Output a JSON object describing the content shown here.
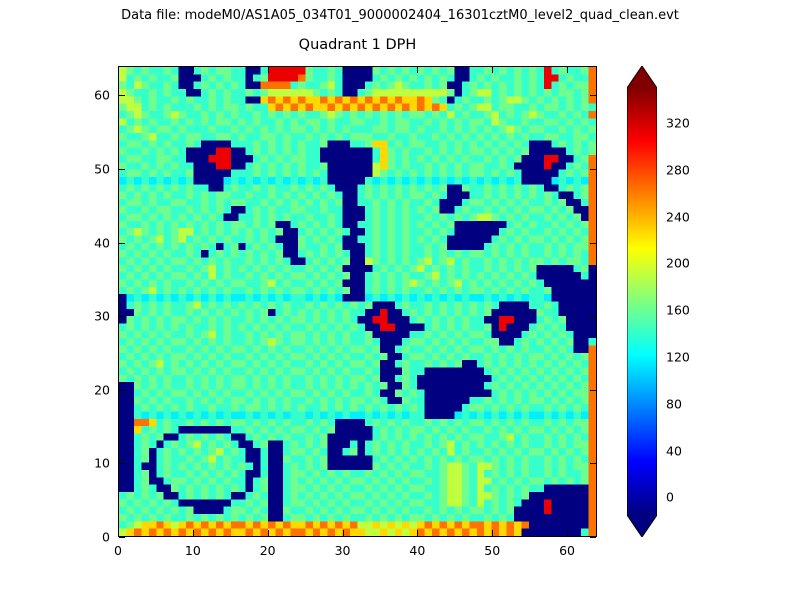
{
  "figure": {
    "suptitle": "Data file: modeM0/AS1A05_034T01_9000002404_16301cztM0_level2_quad_clean.evt",
    "title": "Quadrant 1 DPH",
    "background": "#ffffff"
  },
  "chart_data": {
    "type": "heatmap",
    "title": "Quadrant 1 DPH",
    "suptitle": "Data file: modeM0/AS1A05_034T01_9000002404_16301cztM0_level2_quad_clean.evt",
    "colormap": "jet",
    "vmin": 0,
    "vmax": 347,
    "x_range": [
      0,
      64
    ],
    "y_range": [
      0,
      64
    ],
    "xlabel": "",
    "ylabel": "",
    "x_ticks": [
      0,
      10,
      20,
      30,
      40,
      50,
      60
    ],
    "y_ticks": [
      0,
      10,
      20,
      30,
      40,
      50,
      60
    ],
    "colorbar": {
      "ticks": [
        0,
        40,
        80,
        120,
        160,
        200,
        240,
        280,
        320
      ],
      "extend": "both",
      "tick_vmin": -15,
      "tick_vmax": 350
    },
    "grid_encoding": {
      "0": 0,
      "1": 40,
      "2": 80,
      "3": 125,
      "4": 148,
      "5": 168,
      "6": 195,
      "7": 230,
      "8": 265,
      "9": 310
    },
    "row_order": "top_to_bottom (first row is y=63, last row is y=0)",
    "rows": [
      "6545445400454554400499999544540000545454545450044545454549454458",
      "6454544500045454404599998544540000454545454540045454454549945448",
      "5465445400454545400888845445640004545654454500454545454549454558",
      "6544545440045454454566666654540045666666666650456645454545455458",
      "6654544545445454400787878778787878787877875404544545665454545458",
      "5664545444545455454478787877878787878787878745456645544545545454",
      "4565445654454545445454545445654545454545545464544564545654454548",
      "6454544545454554545445454554544554454554454545455465445445545454",
      "4565455454445445454545455454545444554554544545454545654554454545",
      "5445644545544554544554544545454555445445445454545454545445544554",
      "4554545445400004445454545445000445774545544545454545454000454545",
      "5445454540000990045454545440000000475454454545455454545000004545",
      "4554455440009990004545455440000000475454545454544545450009900458",
      "5445454544000990045454545445000000675454454545455445400009004548",
      "4554545445000004445454545454000000654545454545455454540000045458",
      "3434343434000034343434343434000004343434343434343434340000343438",
      "4545454545440045445454454545400045454545454500544545454540045458",
      "5454545445454554454454545454540045454545545400044545454545400458",
      "4554544554454545544545454545450044545454454000455454545445450048",
      "5445455445454540045454455445440004545454545004544545454554545008",
      "4554545454545400445454544544540004545454454545456654545445454508",
      "5445454545454545545450045454540044545454545450000000454544545458",
      "4565454566454545454545004545454004545454454540000004545445454548",
      "5454564564545454454540005454540044545454545400000045454554545458",
      "4545454545454045045454005445450004545454454500000454545445454558",
      "5454545445404545454545004545454004545454454545455454545445454548",
      "4545454554545454454545400454545006545454564564544545454554545548",
      "5454545445456454545454544545450000454545645454544545454500000450",
      "4545454554546454454545455454545004545454456454545454545400000040",
      "5454545445454545544564544545450004545456545456454545454540000000",
      "4545645454545454454545455454545004545454454545455454545445000000",
      "0343434343434343343434344343430003434343434343433434343443000000",
      "0454545445645454545454544545454545000454454545454540000445400000",
      "0054545445454545454504545454545440090045454545454500000054400000",
      "0545454554545454454545455454545400990004545454544009900045450000",
      "4545454545445454545454544545454540099000045454544509000454540000",
      "5454545445456454454545455454545445000004454545455400004545454000",
      "4545454554545454454565455454545445400045545454544550045454545004",
      "5454545445454545545454544545454554500454454545455454545445454008",
      "4545454554545454454545455454545445450045545454544545454554545458",
      "5454564545454545545454544545454554500454454545004545454545454548",
      "4545454554545454454545455454545445400054400000000454545454545458",
      "5454545445454545545454544545454554500454000000000045454545454548",
      "0054545445454545545454544545454545450054000000000454545454545458",
      "0045454554545454454545455454545445400545400000000045454545454558",
      "0054545445454545545454544545454554540054400000044545454554545458",
      "0045454545445445455454545445454545454545400000455454545445454548",
      "0043434343434343343434344343434334343434400003434343434334343438",
      "0088745445454545545454544545400004545454454545455454545445454558",
      "0074545400000004454545455454500000454545545454544545454554545458",
      "0045450045454540045454544545000000454545454545455445645445454548",
      "0045404545645454004500454545000404545454454564545454545445454558",
      "0045045454545645400400455454004504545454545464544545454554545458",
      "0045045445456454400400544545000000454545454545455454545445454548",
      "0040045454545454540400454545000000545454454566546654545445454558",
      "0045045445454545400400455454545445454545544566546454545445454458",
      "0045004554545454404500454545454554545454454566546645454554545458",
      "0045400545454545404500455454545445454545544566546454545440000008",
      "4545450045454540045400454545454554545454454566546654545000000008",
      "5454545400000004454500455454545445454545544566546454540009000008",
      "4545454545000045545400544545454554545454454545455454500009000008",
      "5454545445454545454500455454545445454545545454544545400000000008",
      "4567787678787878878787877878787866767676787878788787878000000008",
      "6787878787878787787878788787878776676767878787878787870000000048"
    ]
  }
}
